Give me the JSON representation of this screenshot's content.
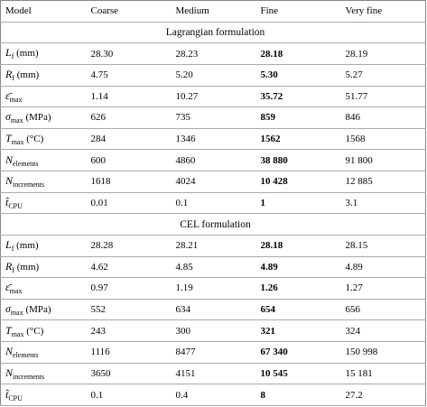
{
  "header": [
    "Model",
    "Coarse",
    "Medium",
    "Fine",
    "Very fine"
  ],
  "sections": [
    {
      "title": "Lagrangian formulation",
      "rows": [
        {
          "label": {
            "symbol": "L",
            "sub": "f",
            "unit": "(mm)"
          },
          "values": [
            "28.30",
            "28.23",
            "28.18",
            "28.19"
          ]
        },
        {
          "label": {
            "symbol": "R",
            "sub": "f",
            "unit": "(mm)"
          },
          "values": [
            "4.75",
            "5.20",
            "5.30",
            "5.27"
          ]
        },
        {
          "label": {
            "symbol": "ε̄",
            "sub": "max"
          },
          "values": [
            "1.14",
            "10.27",
            "35.72",
            "51.77"
          ]
        },
        {
          "label": {
            "symbol": "σ",
            "sub": "max",
            "unit": "(MPa)"
          },
          "values": [
            "626",
            "735",
            "859",
            "846"
          ]
        },
        {
          "label": {
            "symbol": "T",
            "sub": "max",
            "unit": "(°C)"
          },
          "values": [
            "284",
            "1346",
            "1562",
            "1568"
          ]
        },
        {
          "label": {
            "symbol": "N",
            "sub": "elements"
          },
          "values": [
            "600",
            "4860",
            "38 880",
            "91 800"
          ]
        },
        {
          "label": {
            "symbol": "N",
            "sub": "increments"
          },
          "values": [
            "1618",
            "4024",
            "10 428",
            "12 885"
          ]
        },
        {
          "label": {
            "symbol": "t̂",
            "sub": "CPU"
          },
          "values": [
            "0.01",
            "0.1",
            "1",
            "3.1"
          ]
        }
      ]
    },
    {
      "title": "CEL formulation",
      "rows": [
        {
          "label": {
            "symbol": "L",
            "sub": "f",
            "unit": "(mm)"
          },
          "values": [
            "28.28",
            "28.21",
            "28.18",
            "28.15"
          ]
        },
        {
          "label": {
            "symbol": "R",
            "sub": "f",
            "unit": "(mm)"
          },
          "values": [
            "4.62",
            "4.85",
            "4.89",
            "4.89"
          ]
        },
        {
          "label": {
            "symbol": "ε̄",
            "sub": "max"
          },
          "values": [
            "0.97",
            "1.19",
            "1.26",
            "1.27"
          ]
        },
        {
          "label": {
            "symbol": "σ",
            "sub": "max",
            "unit": "(MPa)"
          },
          "values": [
            "552",
            "634",
            "654",
            "656"
          ]
        },
        {
          "label": {
            "symbol": "T",
            "sub": "max",
            "unit": "(°C)"
          },
          "values": [
            "243",
            "300",
            "321",
            "324"
          ]
        },
        {
          "label": {
            "symbol": "N",
            "sub": "elements"
          },
          "values": [
            "1116",
            "8477",
            "67 340",
            "150 998"
          ]
        },
        {
          "label": {
            "symbol": "N",
            "sub": "increments"
          },
          "values": [
            "3650",
            "4151",
            "10 545",
            "15 181"
          ]
        },
        {
          "label": {
            "symbol": "t̂",
            "sub": "CPU"
          },
          "values": [
            "0.1",
            "0.4",
            "8",
            "27.2"
          ]
        }
      ]
    }
  ]
}
